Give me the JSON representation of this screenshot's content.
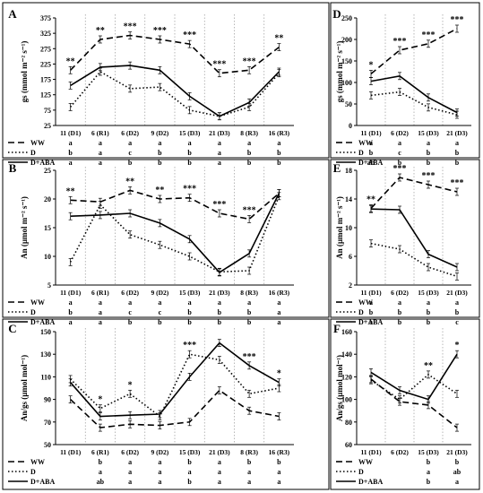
{
  "chart_data": [
    {
      "panel": "A",
      "type": "line",
      "ylabel": "gs (mmol m⁻² s⁻¹)",
      "ylim": [
        25,
        375
      ],
      "yticks": [
        25,
        75,
        125,
        175,
        225,
        275,
        325,
        375
      ],
      "categories": [
        "11 (D1)",
        "6 (R1)",
        "6 (D2)",
        "9 (D2)",
        "15 (D3)",
        "21 (D3)",
        "8 (R3)",
        "16 (R3)"
      ],
      "series": [
        {
          "name": "WW",
          "values": [
            205,
            305,
            318,
            305,
            290,
            195,
            205,
            280
          ]
        },
        {
          "name": "D",
          "values": [
            85,
            200,
            145,
            150,
            75,
            55,
            85,
            195
          ]
        },
        {
          "name": "D+ABA",
          "values": [
            155,
            215,
            220,
            205,
            120,
            55,
            100,
            200
          ]
        }
      ],
      "significance": [
        "**",
        "**",
        "***",
        "***",
        "***",
        "***",
        "***",
        "**"
      ],
      "letters": {
        "WW": [
          "a",
          "a",
          "a",
          "a",
          "a",
          "a",
          "a",
          "a"
        ],
        "D": [
          "b",
          "a",
          "c",
          "b",
          "b",
          "a",
          "b",
          "b"
        ],
        "D+ABA": [
          "a",
          "a",
          "b",
          "b",
          "b",
          "a",
          "b",
          "b"
        ]
      },
      "legend": "bottom-left"
    },
    {
      "panel": "B",
      "type": "line",
      "ylabel": "An (µmol m⁻² s⁻¹)",
      "ylim": [
        5,
        25
      ],
      "yticks": [
        5,
        10,
        15,
        20,
        25
      ],
      "categories": [
        "11 (D1)",
        "6 (R1)",
        "6 (D2)",
        "9 (D2)",
        "15 (D3)",
        "21 (D3)",
        "8 (R3)",
        "16 (R3)"
      ],
      "series": [
        {
          "name": "WW",
          "values": [
            19.8,
            19.5,
            21.5,
            20,
            20.2,
            17.5,
            16.5,
            21
          ]
        },
        {
          "name": "D",
          "values": [
            9,
            19,
            13.8,
            12,
            10,
            7.3,
            7.5,
            20.5
          ]
        },
        {
          "name": "D+ABA",
          "values": [
            17,
            17.2,
            17.5,
            15.8,
            13,
            7.2,
            10.5,
            21
          ]
        }
      ],
      "significance": [
        "**",
        "",
        "**",
        "**",
        "***",
        "***",
        "***",
        ""
      ],
      "letters": {
        "WW": [
          "a",
          "a",
          "a",
          "a",
          "a",
          "a",
          "a",
          "a"
        ],
        "D": [
          "b",
          "a",
          "c",
          "c",
          "b",
          "b",
          "b",
          "a"
        ],
        "D+ABA": [
          "a",
          "a",
          "b",
          "b",
          "b",
          "b",
          "b",
          "a"
        ]
      },
      "legend": "bottom-left"
    },
    {
      "panel": "C",
      "type": "line",
      "ylabel": "An/gs (µmol mol⁻¹)",
      "ylim": [
        50,
        150
      ],
      "yticks": [
        50,
        70,
        90,
        110,
        130,
        150
      ],
      "categories": [
        "11 (D1)",
        "6 (R1)",
        "6 (D2)",
        "9 (D2)",
        "15 (D3)",
        "21 (D3)",
        "8 (R3)",
        "16 (R3)"
      ],
      "series": [
        {
          "name": "WW",
          "values": [
            90,
            65,
            68,
            67,
            70,
            98,
            80,
            75
          ]
        },
        {
          "name": "D",
          "values": [
            108,
            82,
            95,
            75,
            130,
            125,
            95,
            100
          ]
        },
        {
          "name": "D+ABA",
          "values": [
            105,
            75,
            76,
            77,
            110,
            140,
            120,
            105
          ]
        }
      ],
      "significance": [
        "",
        "*",
        "*",
        "",
        "***",
        "",
        "***",
        "*"
      ],
      "letters": {
        "WW": [
          "",
          "b",
          "a",
          "a",
          "b",
          "a",
          "b",
          "b"
        ],
        "D": [
          "",
          "a",
          "a",
          "a",
          "a",
          "a",
          "a",
          "a"
        ],
        "D+ABA": [
          "",
          "ab",
          "a",
          "a",
          "b",
          "a",
          "a",
          "a"
        ]
      },
      "legend": "bottom-left"
    },
    {
      "panel": "D",
      "type": "line",
      "ylabel": "gs (mmol m⁻² s⁻¹)",
      "ylim": [
        0,
        250
      ],
      "yticks": [
        0,
        50,
        100,
        150,
        200,
        250
      ],
      "categories": [
        "11 (D1)",
        "6 (D2)",
        "15 (D3)",
        "21 (D3)"
      ],
      "series": [
        {
          "name": "WW",
          "values": [
            120,
            175,
            190,
            225
          ]
        },
        {
          "name": "D",
          "values": [
            70,
            78,
            42,
            25
          ]
        },
        {
          "name": "D+ABA",
          "values": [
            103,
            115,
            65,
            30
          ]
        }
      ],
      "significance": [
        "*",
        "***",
        "***",
        "***"
      ],
      "letters": {
        "WW": [
          "a",
          "a",
          "a",
          "a"
        ],
        "D": [
          "b",
          "c",
          "b",
          "b"
        ],
        "D+ABA": [
          "ab",
          "b",
          "b",
          "b"
        ]
      },
      "legend": "bottom-left"
    },
    {
      "panel": "E",
      "type": "line",
      "ylabel": "An (µmol m⁻² s⁻¹)",
      "ylim": [
        2,
        18
      ],
      "yticks": [
        2,
        6,
        10,
        14,
        18
      ],
      "categories": [
        "11 (D1)",
        "6 (D2)",
        "15 (D3)",
        "21 (D3)"
      ],
      "series": [
        {
          "name": "WW",
          "values": [
            12.7,
            17,
            16,
            15
          ]
        },
        {
          "name": "D",
          "values": [
            7.8,
            7,
            4.5,
            3.2
          ]
        },
        {
          "name": "D+ABA",
          "values": [
            12.6,
            12.5,
            6.3,
            4.5
          ]
        }
      ],
      "significance": [
        "**",
        "***",
        "***",
        "***"
      ],
      "letters": {
        "WW": [
          "a",
          "a",
          "a",
          "a"
        ],
        "D": [
          "b",
          "b",
          "b",
          "b"
        ],
        "D+ABA": [
          "a",
          "b",
          "b",
          "c"
        ]
      },
      "legend": "bottom-left"
    },
    {
      "panel": "F",
      "type": "line",
      "ylabel": "An/gs (µmol mol⁻¹)",
      "ylim": [
        60,
        160
      ],
      "yticks": [
        60,
        80,
        100,
        120,
        140,
        160
      ],
      "categories": [
        "11 (D1)",
        "6 (D2)",
        "15 (D3)",
        "21 (D3)"
      ],
      "series": [
        {
          "name": "WW",
          "values": [
            118,
            98,
            95,
            75
          ]
        },
        {
          "name": "D",
          "values": [
            117,
            100,
            122,
            105
          ]
        },
        {
          "name": "D+ABA",
          "values": [
            124,
            108,
            100,
            140
          ]
        }
      ],
      "significance": [
        "",
        "",
        "**",
        "*"
      ],
      "letters": {
        "WW": [
          "",
          "",
          "b",
          "b"
        ],
        "D": [
          "",
          "",
          "a",
          "ab"
        ],
        "D+ABA": [
          "",
          "",
          "b",
          "a"
        ]
      },
      "legend": "bottom-left"
    }
  ]
}
